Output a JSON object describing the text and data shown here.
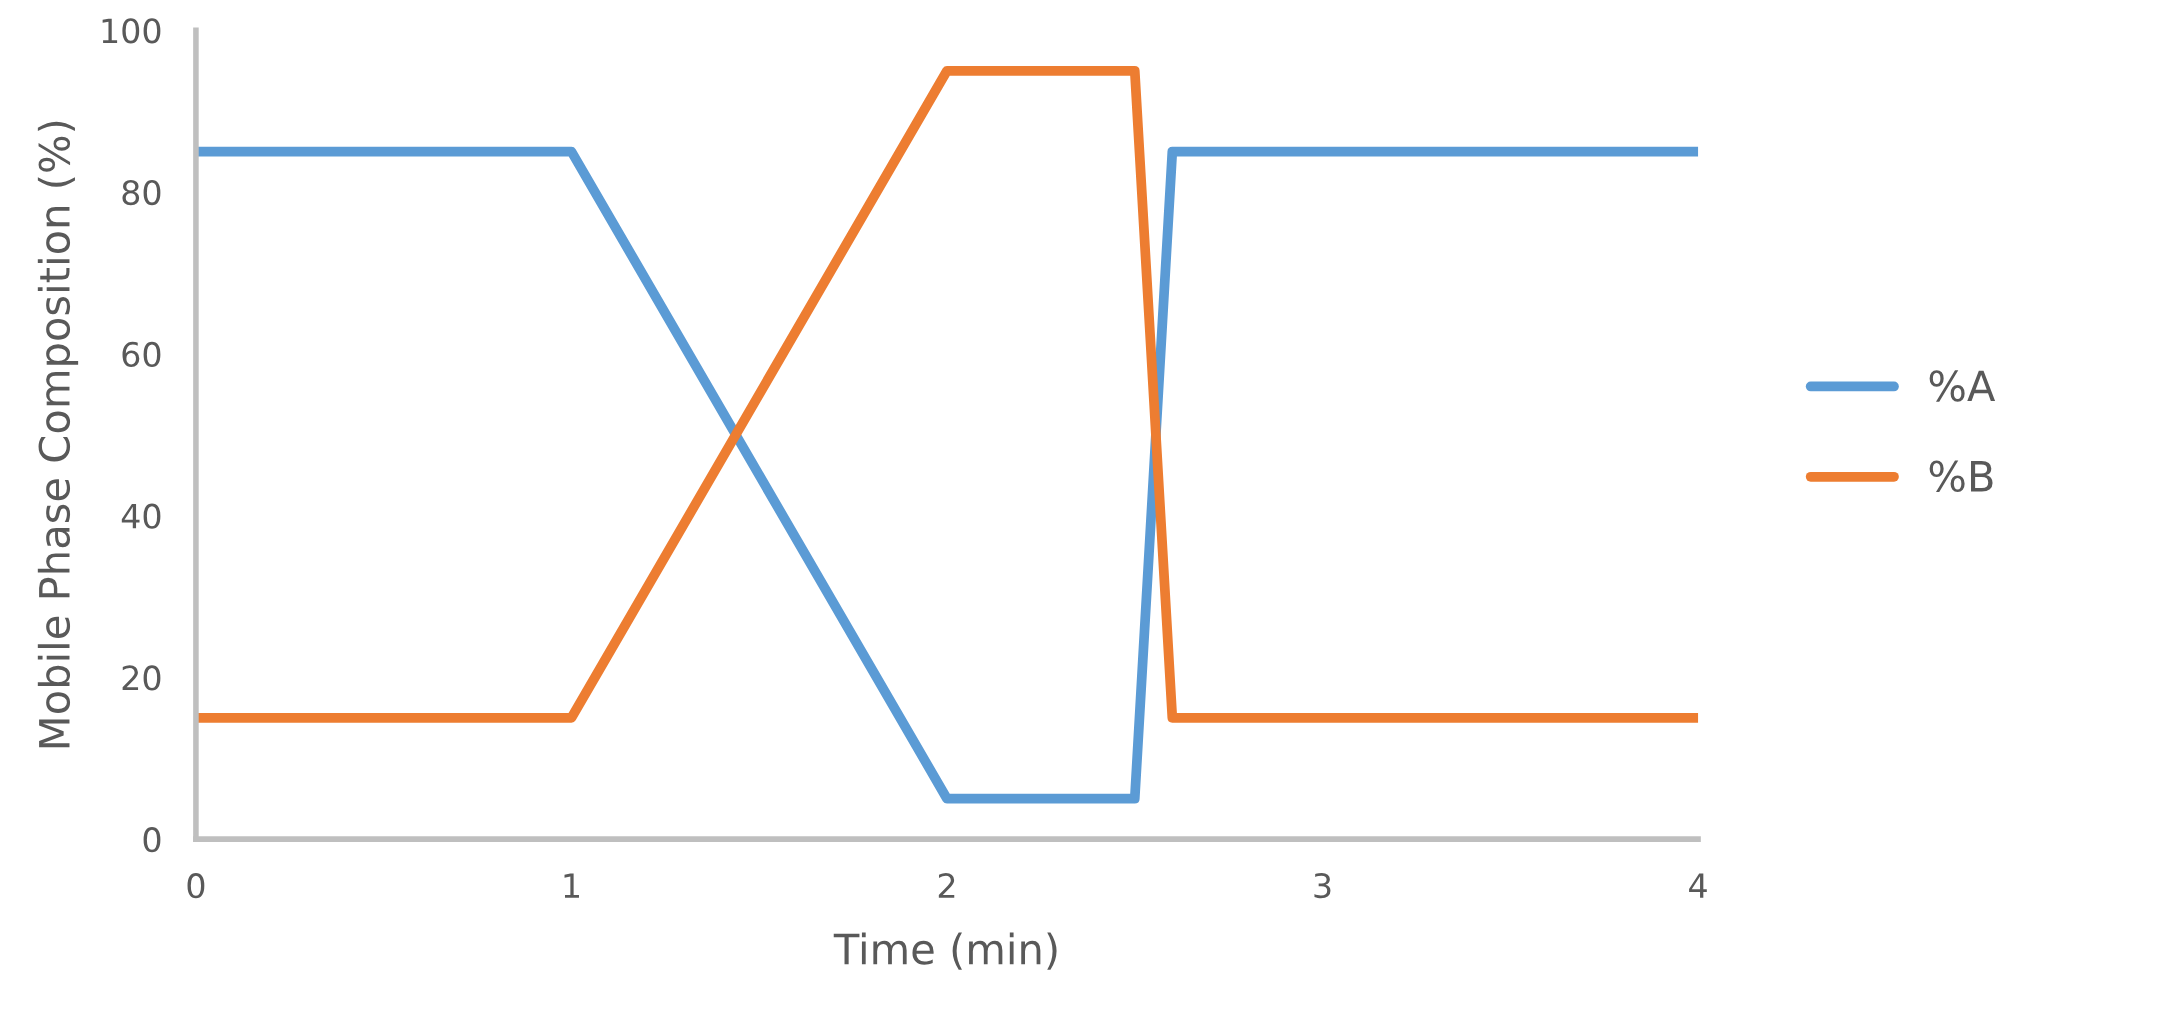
{
  "chart_data": {
    "type": "line",
    "xlabel": "Time (min)",
    "ylabel": "Mobile Phase Composition (%)",
    "x": [
      0,
      1,
      2,
      2.5,
      2.6,
      4
    ],
    "series": [
      {
        "name": "%A",
        "color": "#5b9bd5",
        "values": [
          85,
          85,
          5,
          5,
          85,
          85
        ]
      },
      {
        "name": "%B",
        "color": "#ed7d31",
        "values": [
          15,
          15,
          95,
          95,
          15,
          15
        ]
      }
    ],
    "xlim": [
      0,
      4
    ],
    "xticks": [
      0,
      1,
      2,
      3,
      4
    ],
    "ylim": [
      0,
      100
    ],
    "yticks": [
      0,
      20,
      40,
      60,
      80,
      100
    ],
    "grid": false,
    "legend": "right",
    "marker": "none",
    "line_style": "solid"
  }
}
